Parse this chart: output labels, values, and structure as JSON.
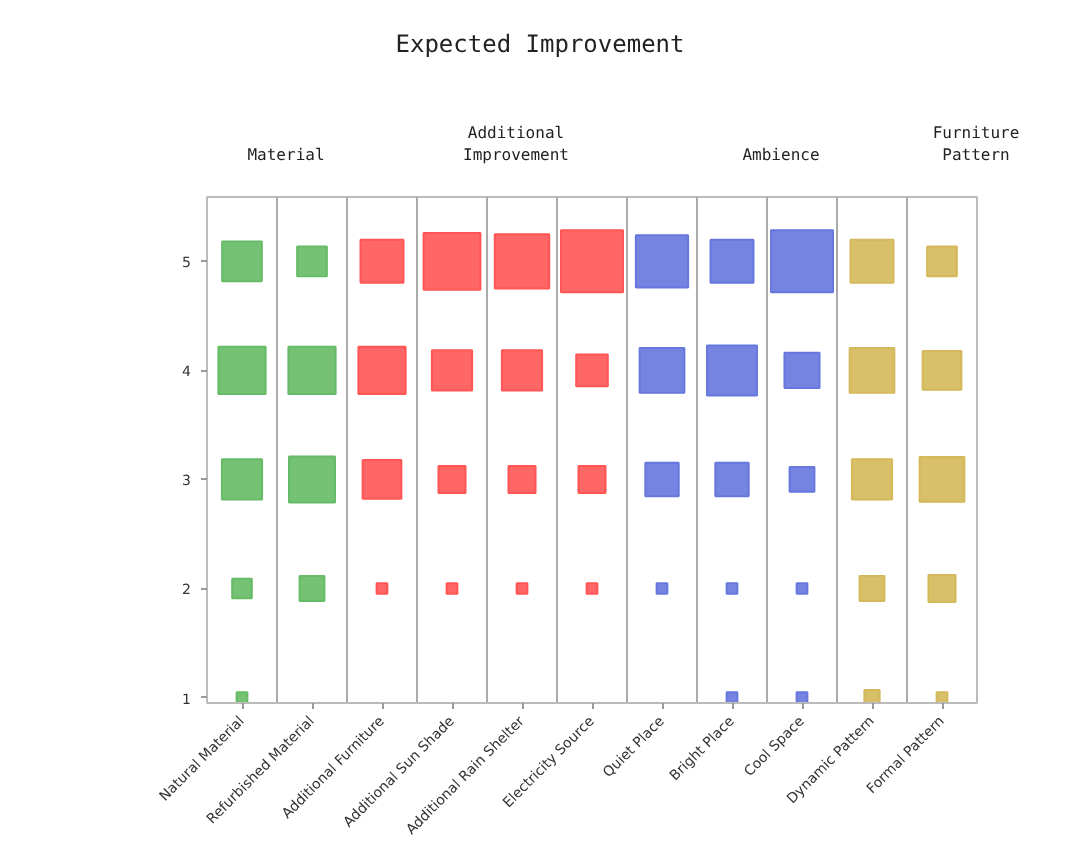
{
  "chart_data": {
    "type": "bubble",
    "title": "Expected Improvement",
    "annotations": [
      "Material",
      "Additional\nImprovement",
      "Ambience",
      "Furniture\nPattern"
    ],
    "categories": [
      "Natural Material",
      "Refurbished Material",
      "Additional Furniture",
      "Additional Sun Shade",
      "Additional Rain Shelter",
      "Electricity Source",
      "Quiet Place",
      "Bright Place",
      "Cool Space",
      "Dynamic Pattern",
      "Formal Pattern"
    ],
    "ylim": [
      0.95,
      5.59
    ],
    "yticks": [
      1,
      2,
      3,
      4,
      5
    ],
    "series": [
      {
        "values": [
          5,
          5,
          5,
          5,
          5,
          5,
          5,
          5,
          5,
          5,
          5
        ],
        "sizes": [
          0.41,
          0.23,
          0.48,
          0.84,
          0.77,
          1,
          0.71,
          0.48,
          1,
          0.48,
          0.23
        ],
        "colors": [
          "#66bb66",
          "#66bb66",
          "#ff5555",
          "#ff5555",
          "#ff5555",
          "#ff5555",
          "#6677dd",
          "#6677dd",
          "#6677dd",
          "#d4b85a",
          "#d4b85a"
        ]
      },
      {
        "values": [
          4,
          4,
          4,
          4,
          4,
          4,
          4,
          4,
          4,
          4,
          4
        ],
        "sizes": [
          0.58,
          0.58,
          0.58,
          0.42,
          0.42,
          0.26,
          0.52,
          0.65,
          0.32,
          0.52,
          0.39
        ],
        "colors": [
          "#66bb66",
          "#66bb66",
          "#ff5555",
          "#ff5555",
          "#ff5555",
          "#ff5555",
          "#6677dd",
          "#6677dd",
          "#6677dd",
          "#d4b85a",
          "#d4b85a"
        ]
      },
      {
        "values": [
          3,
          3,
          3,
          3,
          3,
          3,
          3,
          3,
          3,
          3,
          3
        ],
        "sizes": [
          0.42,
          0.55,
          0.39,
          0.19,
          0.19,
          0.19,
          0.29,
          0.29,
          0.16,
          0.42,
          0.52
        ],
        "colors": [
          "#66bb66",
          "#66bb66",
          "#ff5555",
          "#ff5555",
          "#ff5555",
          "#ff5555",
          "#6677dd",
          "#6677dd",
          "#6677dd",
          "#d4b85a",
          "#d4b85a"
        ]
      },
      {
        "values": [
          2,
          2,
          2,
          2,
          2,
          2,
          2,
          2,
          2,
          2,
          2
        ],
        "sizes": [
          0.1,
          0.16,
          0.03,
          0.03,
          0.03,
          0.03,
          0.03,
          0.03,
          0.03,
          0.16,
          0.19
        ],
        "colors": [
          "#66bb66",
          "#66bb66",
          "#ff5555",
          "#ff5555",
          "#ff5555",
          "#ff5555",
          "#6677dd",
          "#6677dd",
          "#6677dd",
          "#d4b85a",
          "#d4b85a"
        ]
      },
      {
        "values": [
          1,
          null,
          null,
          null,
          null,
          null,
          null,
          1,
          1,
          1,
          1
        ],
        "sizes": [
          0.03,
          null,
          null,
          null,
          null,
          null,
          null,
          0.03,
          0.03,
          0.06,
          0.03
        ],
        "colors": [
          "#66bb66",
          "#66bb66",
          "#ff5555",
          "#ff5555",
          "#ff5555",
          "#ff5555",
          "#6677dd",
          "#6677dd",
          "#6677dd",
          "#d4b85a",
          "#d4b85a"
        ]
      }
    ]
  }
}
